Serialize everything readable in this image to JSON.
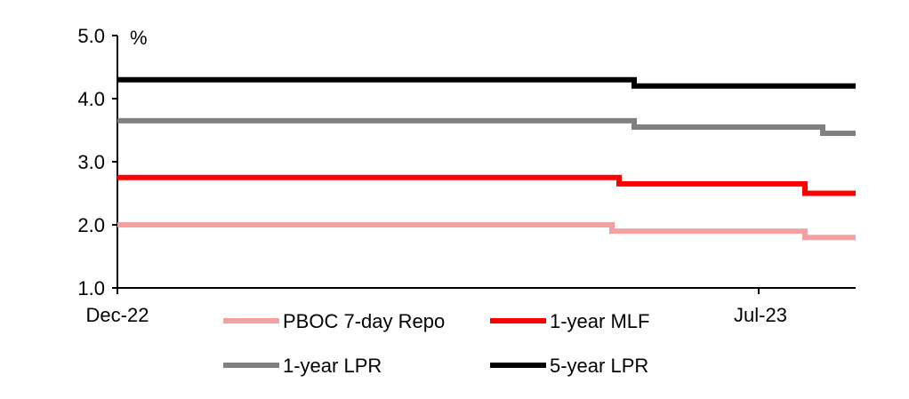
{
  "chart_data": {
    "type": "line",
    "ylabel": "%",
    "ylim": [
      1.0,
      5.0
    ],
    "yticks": [
      "1.0",
      "2.0",
      "3.0",
      "4.0",
      "5.0"
    ],
    "xticks": [
      "Dec-22",
      "Jul-23"
    ],
    "grid": false,
    "legend_position": "bottom",
    "series": [
      {
        "name": "PBOC 7-day Repo",
        "color": "#f4a0a0",
        "points": [
          [
            "Dec-22",
            2.0
          ],
          [
            "Jun-23",
            2.0
          ],
          [
            "Jun-23",
            1.9
          ],
          [
            "Aug-23",
            1.9
          ],
          [
            "Aug-23",
            1.8
          ],
          [
            "Sep-23",
            1.8
          ]
        ]
      },
      {
        "name": "1-year MLF",
        "color": "#ff0000",
        "points": [
          [
            "Dec-22",
            2.75
          ],
          [
            "Jun-23",
            2.75
          ],
          [
            "Jun-23",
            2.65
          ],
          [
            "Aug-23",
            2.65
          ],
          [
            "Aug-23",
            2.5
          ],
          [
            "Sep-23",
            2.5
          ]
        ]
      },
      {
        "name": "1-year LPR",
        "color": "#808080",
        "points": [
          [
            "Dec-22",
            3.65
          ],
          [
            "Jun-23",
            3.65
          ],
          [
            "Jun-23",
            3.55
          ],
          [
            "Aug-23",
            3.55
          ],
          [
            "Aug-23",
            3.45
          ],
          [
            "Sep-23",
            3.45
          ]
        ]
      },
      {
        "name": "5-year LPR",
        "color": "#000000",
        "points": [
          [
            "Dec-22",
            4.3
          ],
          [
            "Jun-23",
            4.3
          ],
          [
            "Jun-23",
            4.2
          ],
          [
            "Sep-23",
            4.2
          ]
        ]
      }
    ]
  }
}
